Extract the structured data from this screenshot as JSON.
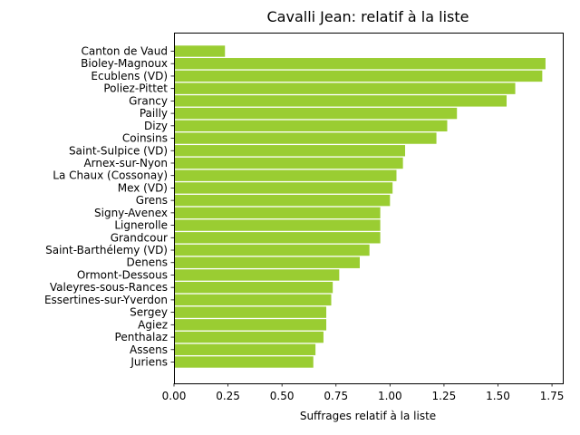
{
  "chart_data": {
    "type": "bar",
    "orientation": "horizontal",
    "title": "Cavalli Jean: relatif à la liste",
    "xlabel": "Suffrages relatif à la liste",
    "ylabel": "",
    "xlim": [
      0,
      1.8
    ],
    "xticks": [
      0.0,
      0.25,
      0.5,
      0.75,
      1.0,
      1.25,
      1.5,
      1.75
    ],
    "xtick_labels": [
      "0.00",
      "0.25",
      "0.50",
      "0.75",
      "1.00",
      "1.25",
      "1.50",
      "1.75"
    ],
    "bar_color": "#9acd32",
    "grid": false,
    "categories": [
      "Canton de Vaud",
      "Bioley-Magnoux",
      "Ecublens (VD)",
      "Poliez-Pittet",
      "Grancy",
      "Pailly",
      "Dizy",
      "Coinsins",
      "Saint-Sulpice (VD)",
      "Arnex-sur-Nyon",
      "La Chaux (Cossonay)",
      "Mex (VD)",
      "Grens",
      "Signy-Avenex",
      "Lignerolle",
      "Grandcour",
      "Saint-Barthélemy (VD)",
      "Denens",
      "Ormont-Dessous",
      "Valeyres-sous-Rances",
      "Essertines-sur-Yverdon",
      "Sergey",
      "Agiez",
      "Penthalaz",
      "Assens",
      "Juriens"
    ],
    "values": [
      0.236,
      1.72,
      1.705,
      1.58,
      1.54,
      1.31,
      1.265,
      1.215,
      1.07,
      1.06,
      1.03,
      1.012,
      1.0,
      0.955,
      0.955,
      0.955,
      0.905,
      0.86,
      0.765,
      0.735,
      0.728,
      0.705,
      0.705,
      0.692,
      0.655,
      0.645
    ]
  }
}
